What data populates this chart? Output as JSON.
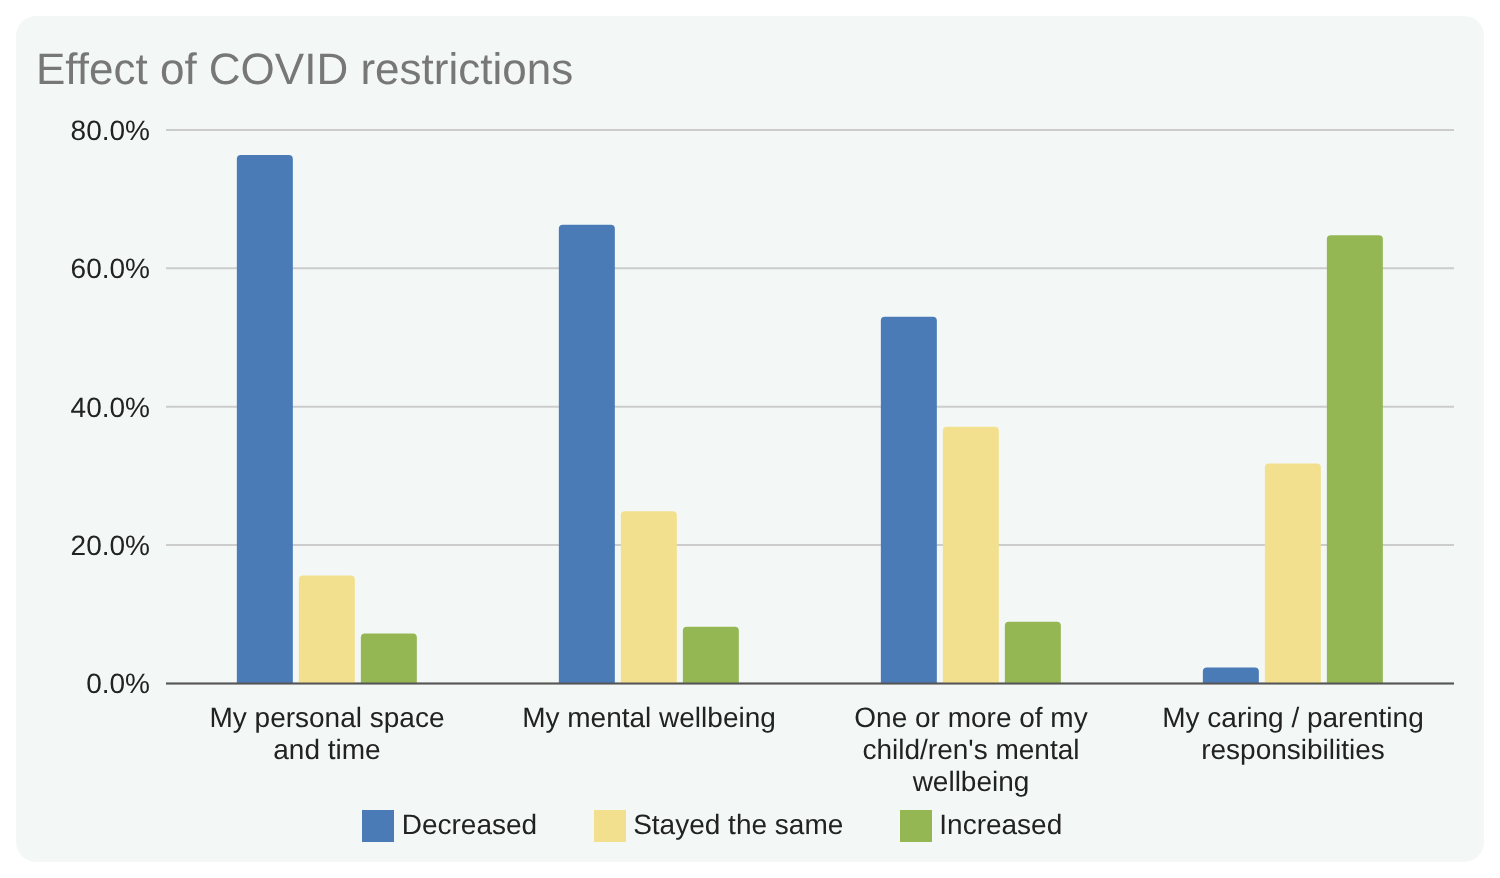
{
  "chart_data": {
    "type": "bar",
    "title": "Effect of COVID restrictions",
    "categories": [
      "My personal space and time",
      "My mental wellbeing",
      "One or more of my child/ren's mental wellbeing",
      "My caring / parenting responsibilities"
    ],
    "series": [
      {
        "name": "Decreased",
        "color": "#4a7bb7",
        "values": [
          76.4,
          66.3,
          53.0,
          2.3
        ]
      },
      {
        "name": "Stayed the same",
        "color": "#f3e08f",
        "values": [
          15.6,
          24.9,
          37.1,
          31.8
        ]
      },
      {
        "name": "Increased",
        "color": "#94b754",
        "values": [
          7.2,
          8.2,
          8.9,
          64.8
        ]
      }
    ],
    "ylim": [
      0,
      80
    ],
    "yticks": [
      {
        "value": 0,
        "label": "0.0%"
      },
      {
        "value": 20,
        "label": "20.0%"
      },
      {
        "value": 40,
        "label": "40.0%"
      },
      {
        "value": 60,
        "label": "60.0%"
      },
      {
        "value": 80,
        "label": "80.0%"
      }
    ],
    "grid": "y",
    "legend": "bottom"
  }
}
